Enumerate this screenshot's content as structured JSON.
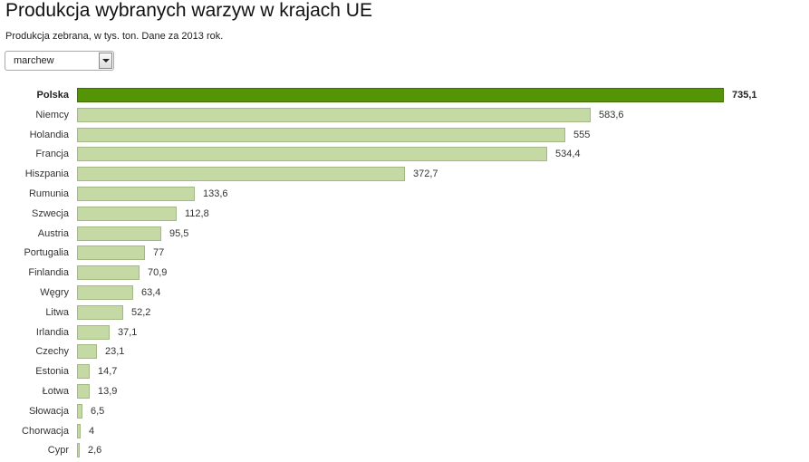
{
  "header": {
    "title": "Produkcja wybranych warzyw w krajach UE",
    "subtitle": "Produkcja zebrana, w tys. ton. Dane za 2013 rok."
  },
  "selector": {
    "selected": "marchew"
  },
  "colors": {
    "highlight": "#559406",
    "bar": "#c4d9a3"
  },
  "chart_data": {
    "type": "bar",
    "orientation": "horizontal",
    "title": "Produkcja wybranych warzyw w krajach UE",
    "subtitle": "Produkcja zebrana, w tys. ton. Dane za 2013 rok.",
    "xlabel": "",
    "ylabel": "",
    "grid": false,
    "highlighted": "Polska",
    "categories": [
      "Polska",
      "Niemcy",
      "Holandia",
      "Francja",
      "Hiszpania",
      "Rumunia",
      "Szwecja",
      "Austria",
      "Portugalia",
      "Finlandia",
      "Węgry",
      "Litwa",
      "Irlandia",
      "Czechy",
      "Estonia",
      "Łotwa",
      "Słowacja",
      "Chorwacja",
      "Cypr"
    ],
    "values": [
      735.1,
      583.6,
      555,
      534.4,
      372.7,
      133.6,
      112.8,
      95.5,
      77,
      70.9,
      63.4,
      52.2,
      37.1,
      23.1,
      14.7,
      13.9,
      6.5,
      4,
      2.6
    ],
    "value_labels": [
      "735,1",
      "583,6",
      "555",
      "534,4",
      "372,7",
      "133,6",
      "112,8",
      "95,5",
      "77",
      "70,9",
      "63,4",
      "52,2",
      "37,1",
      "23,1",
      "14,7",
      "13,9",
      "6,5",
      "4",
      "2,6"
    ]
  }
}
